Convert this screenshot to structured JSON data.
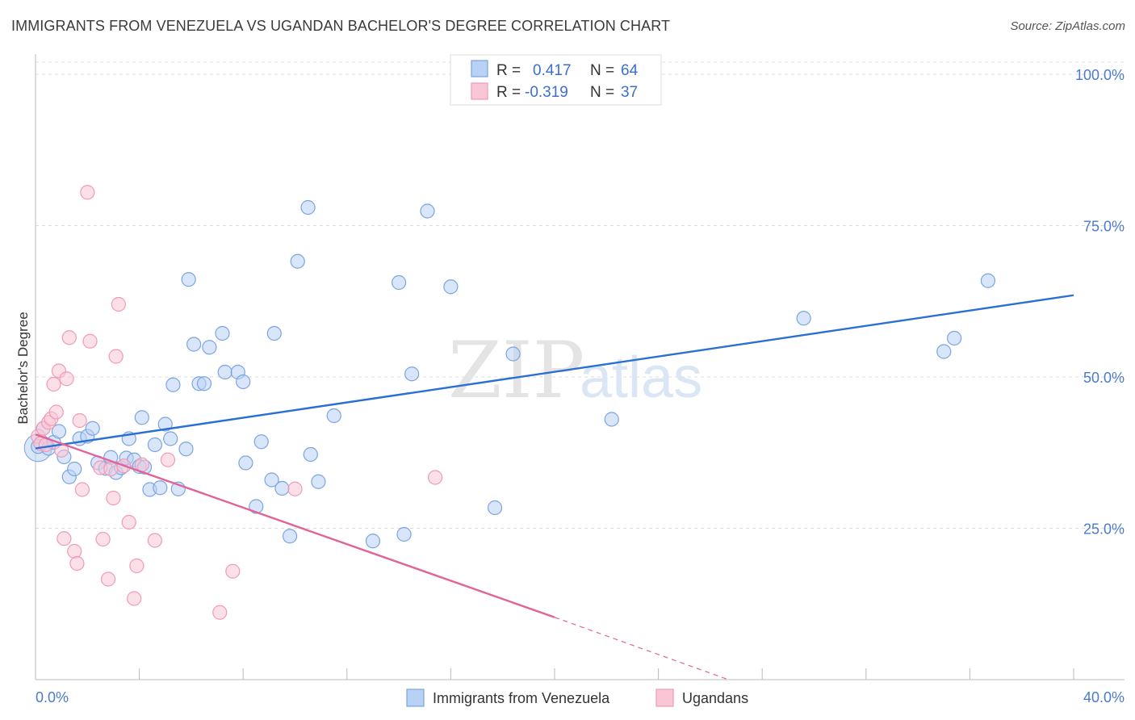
{
  "header": {
    "title": "IMMIGRANTS FROM VENEZUELA VS UGANDAN BACHELOR'S DEGREE CORRELATION CHART",
    "source": "Source: ZipAtlas.com"
  },
  "watermark": {
    "zip": "ZIP",
    "atlas": "atlas"
  },
  "legend": {
    "rows": [
      {
        "r_label": "R =",
        "r_value": "0.417",
        "n_label": "N =",
        "n_value": "64"
      },
      {
        "r_label": "R =",
        "r_value": "-0.319",
        "n_label": "N =",
        "n_value": "37"
      }
    ]
  },
  "colors": {
    "blue_fill": "#b9d1f5",
    "blue_stroke": "#7aa3e0",
    "blue_line": "#2a6fd4",
    "pink_fill": "#f9c6d6",
    "pink_stroke": "#ef9ab6",
    "pink_line": "#e0649a"
  },
  "chart_data": {
    "type": "scatter",
    "title": "IMMIGRANTS FROM VENEZUELA VS UGANDAN BACHELOR'S DEGREE CORRELATION CHART",
    "xlabel": "",
    "ylabel": "Bachelor's Degree",
    "xlim": [
      0,
      40
    ],
    "ylim": [
      0,
      102
    ],
    "x_tick_labels": [
      "0.0%",
      "40.0%"
    ],
    "y_ticks": [
      25,
      50,
      75,
      100
    ],
    "y_tick_labels": [
      "25.0%",
      "50.0%",
      "75.0%",
      "100.0%"
    ],
    "grid": true,
    "legend_placement": "top-center",
    "series": [
      {
        "name": "Immigrants from Venezuela",
        "color": "#b9d1f5",
        "trend": {
          "x0": 0,
          "y0": 38.2,
          "x1": 40,
          "y1": 63.5
        },
        "points": [
          [
            0.1,
            38.5
          ],
          [
            0.3,
            41.5
          ],
          [
            0.5,
            38.2
          ],
          [
            0.7,
            39.2
          ],
          [
            0.9,
            41.0
          ],
          [
            1.1,
            36.8
          ],
          [
            1.3,
            33.5
          ],
          [
            1.5,
            34.8
          ],
          [
            1.7,
            39.8
          ],
          [
            2.0,
            40.2
          ],
          [
            2.2,
            41.5
          ],
          [
            2.4,
            35.8
          ],
          [
            2.7,
            34.9
          ],
          [
            2.9,
            36.7
          ],
          [
            3.1,
            34.2
          ],
          [
            3.3,
            35.0
          ],
          [
            3.5,
            36.6
          ],
          [
            3.6,
            39.8
          ],
          [
            3.8,
            36.3
          ],
          [
            4.0,
            35.2
          ],
          [
            4.2,
            35.1
          ],
          [
            4.4,
            31.4
          ],
          [
            4.6,
            38.8
          ],
          [
            4.8,
            31.7
          ],
          [
            5.0,
            42.2
          ],
          [
            5.2,
            39.8
          ],
          [
            5.3,
            48.7
          ],
          [
            5.5,
            31.5
          ],
          [
            5.8,
            38.1
          ],
          [
            6.1,
            55.4
          ],
          [
            6.3,
            48.9
          ],
          [
            6.5,
            48.9
          ],
          [
            6.7,
            54.9
          ],
          [
            5.9,
            66.1
          ],
          [
            7.2,
            57.2
          ],
          [
            7.3,
            50.8
          ],
          [
            7.8,
            50.8
          ],
          [
            8.0,
            49.2
          ],
          [
            8.1,
            35.8
          ],
          [
            8.5,
            28.6
          ],
          [
            8.7,
            39.3
          ],
          [
            9.1,
            33.0
          ],
          [
            9.2,
            57.2
          ],
          [
            9.5,
            31.6
          ],
          [
            9.8,
            23.7
          ],
          [
            10.1,
            69.1
          ],
          [
            10.5,
            78.0
          ],
          [
            10.6,
            37.2
          ],
          [
            10.9,
            32.7
          ],
          [
            11.5,
            43.6
          ],
          [
            13.0,
            22.9
          ],
          [
            14.0,
            65.6
          ],
          [
            14.2,
            24.0
          ],
          [
            14.5,
            50.5
          ],
          [
            15.1,
            77.4
          ],
          [
            16.0,
            64.9
          ],
          [
            17.7,
            28.4
          ],
          [
            18.4,
            53.8
          ],
          [
            22.2,
            43.0
          ],
          [
            29.6,
            59.7
          ],
          [
            35.0,
            54.2
          ],
          [
            35.4,
            56.4
          ],
          [
            36.7,
            65.9
          ],
          [
            4.1,
            43.3
          ]
        ]
      },
      {
        "name": "Ugandans",
        "color": "#f9c6d6",
        "trend": {
          "x0": 0,
          "y0": 40.5,
          "x1": 20,
          "y1": 10.3,
          "dash_x1": 26.7,
          "dash_y1": 0.0
        },
        "points": [
          [
            0.1,
            40.2
          ],
          [
            0.2,
            39.0
          ],
          [
            0.3,
            41.5
          ],
          [
            0.4,
            38.8
          ],
          [
            0.5,
            42.5
          ],
          [
            0.6,
            43.1
          ],
          [
            0.7,
            48.8
          ],
          [
            0.8,
            44.2
          ],
          [
            0.9,
            51.0
          ],
          [
            1.0,
            37.9
          ],
          [
            1.1,
            23.3
          ],
          [
            1.2,
            49.7
          ],
          [
            1.3,
            56.5
          ],
          [
            1.5,
            21.2
          ],
          [
            1.6,
            19.2
          ],
          [
            1.7,
            42.8
          ],
          [
            1.8,
            31.4
          ],
          [
            2.0,
            80.5
          ],
          [
            2.1,
            55.9
          ],
          [
            2.5,
            35.0
          ],
          [
            2.6,
            23.2
          ],
          [
            2.8,
            16.6
          ],
          [
            2.9,
            34.8
          ],
          [
            3.0,
            30.0
          ],
          [
            3.1,
            53.4
          ],
          [
            3.2,
            62.0
          ],
          [
            3.4,
            35.3
          ],
          [
            3.6,
            26.0
          ],
          [
            3.8,
            13.4
          ],
          [
            3.9,
            18.8
          ],
          [
            4.1,
            35.5
          ],
          [
            4.6,
            23.0
          ],
          [
            5.1,
            36.3
          ],
          [
            7.1,
            11.1
          ],
          [
            7.6,
            17.9
          ],
          [
            10.0,
            31.5
          ],
          [
            15.4,
            33.4
          ]
        ]
      }
    ]
  },
  "bottom_legend": {
    "items": [
      {
        "label": "Immigrants from Venezuela"
      },
      {
        "label": "Ugandans"
      }
    ]
  }
}
